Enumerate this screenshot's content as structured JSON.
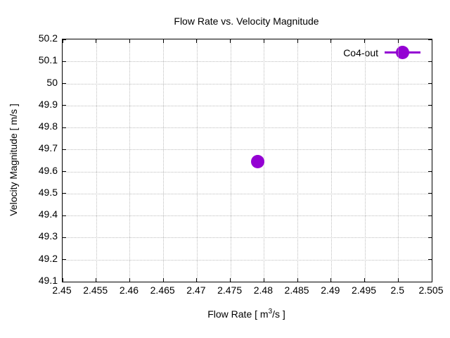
{
  "chart_data": {
    "type": "scatter",
    "title": "Flow Rate vs. Velocity Magnitude",
    "xlabel": {
      "pre": "Flow Rate [ m",
      "sup": "3",
      "post": "/s ]"
    },
    "ylabel": "Velocity Magnitude [ m/s ]",
    "xlim": [
      2.45,
      2.505
    ],
    "ylim": [
      49.1,
      50.2
    ],
    "xtick_labels": [
      "2.45",
      "2.455",
      "2.46",
      "2.465",
      "2.47",
      "2.475",
      "2.48",
      "2.485",
      "2.49",
      "2.495",
      "2.5",
      "2.505"
    ],
    "ytick_labels": [
      "49.1",
      "49.2",
      "49.3",
      "49.4",
      "49.5",
      "49.6",
      "49.7",
      "49.8",
      "49.9",
      "50",
      "50.1",
      "50.2"
    ],
    "grid": true,
    "legend_position": "top-right-inside",
    "series": [
      {
        "name": "Co4-out",
        "color": "#9400d3",
        "marker": "filled-circle",
        "marker_size_px": 19,
        "points": [
          {
            "x": 2.4791,
            "y": 49.645
          }
        ]
      }
    ],
    "colors": {
      "border": "#000000",
      "grid": "#bdbdbd",
      "background": "#ffffff",
      "text": "#000000"
    }
  }
}
